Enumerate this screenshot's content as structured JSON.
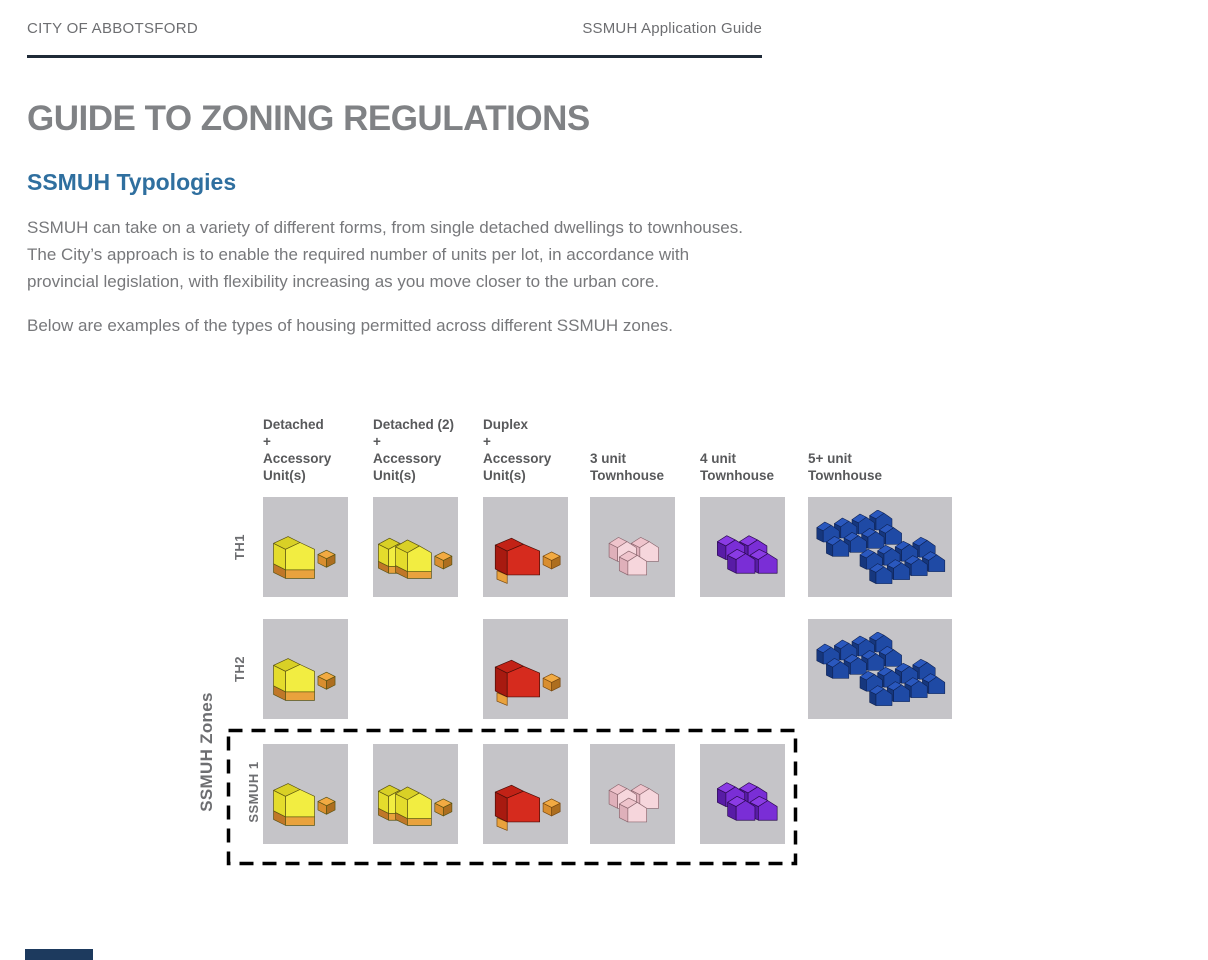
{
  "page_header": {
    "left": "CITY OF ABBOTSFORD",
    "right": "SSMUH Application Guide"
  },
  "title": "GUIDE TO ZONING REGULATIONS",
  "section_heading": "SSMUH Typologies",
  "paragraphs": {
    "intro": "SSMUH can take on a variety of different forms, from single detached dwellings to townhouses.\nThe City’s approach is to enable the required number of units per lot, in accordance with\nprovincial legislation, with flexibility increasing as you move closer to the urban core.",
    "examples": "Below are examples of the types of housing permitted across different SSMUH zones."
  },
  "matrix": {
    "axis_label": "SSMUH Zones",
    "columns": [
      {
        "id": "detached",
        "label": "Detached\n+\nAccessory\nUnit(s)"
      },
      {
        "id": "detached2",
        "label": "Detached (2)\n+\nAccessory\nUnit(s)"
      },
      {
        "id": "duplex",
        "label": "Duplex\n+\nAccessory\nUnit(s)"
      },
      {
        "id": "townhouse3",
        "label": "3 unit\nTownhouse"
      },
      {
        "id": "townhouse4",
        "label": "4 unit\nTownhouse"
      },
      {
        "id": "townhouse5plus",
        "label": "5+ unit\nTownhouse"
      }
    ],
    "rows": [
      {
        "id": "th1",
        "label": "TH1",
        "highlighted": false,
        "cells": [
          "detached",
          "detached2",
          "duplex",
          "townhouse3",
          "townhouse4",
          "townhouse5plus"
        ]
      },
      {
        "id": "th2",
        "label": "TH2",
        "highlighted": false,
        "cells": [
          "detached",
          null,
          "duplex",
          null,
          null,
          "townhouse5plus"
        ]
      },
      {
        "id": "ssmuh1",
        "label": "SSMUH 1",
        "highlighted": true,
        "cells": [
          "detached",
          "detached2",
          "duplex",
          "townhouse3",
          "townhouse4",
          null
        ]
      }
    ]
  },
  "colors": {
    "accent_blue_heading": "#2f6f9f",
    "header_rule": "#1f2a37",
    "body_text": "#77787b",
    "cell_background": "#c5c4c8",
    "house_yellow": "#f2ed41",
    "house_orange": "#e9a23d",
    "house_red": "#d62b1e",
    "house_pink": "#f6d6dc",
    "house_purple": "#7a2ed6",
    "house_blue": "#1f4aa5",
    "highlight_border": "#000000",
    "footer_accent": "#1d3a5e"
  }
}
